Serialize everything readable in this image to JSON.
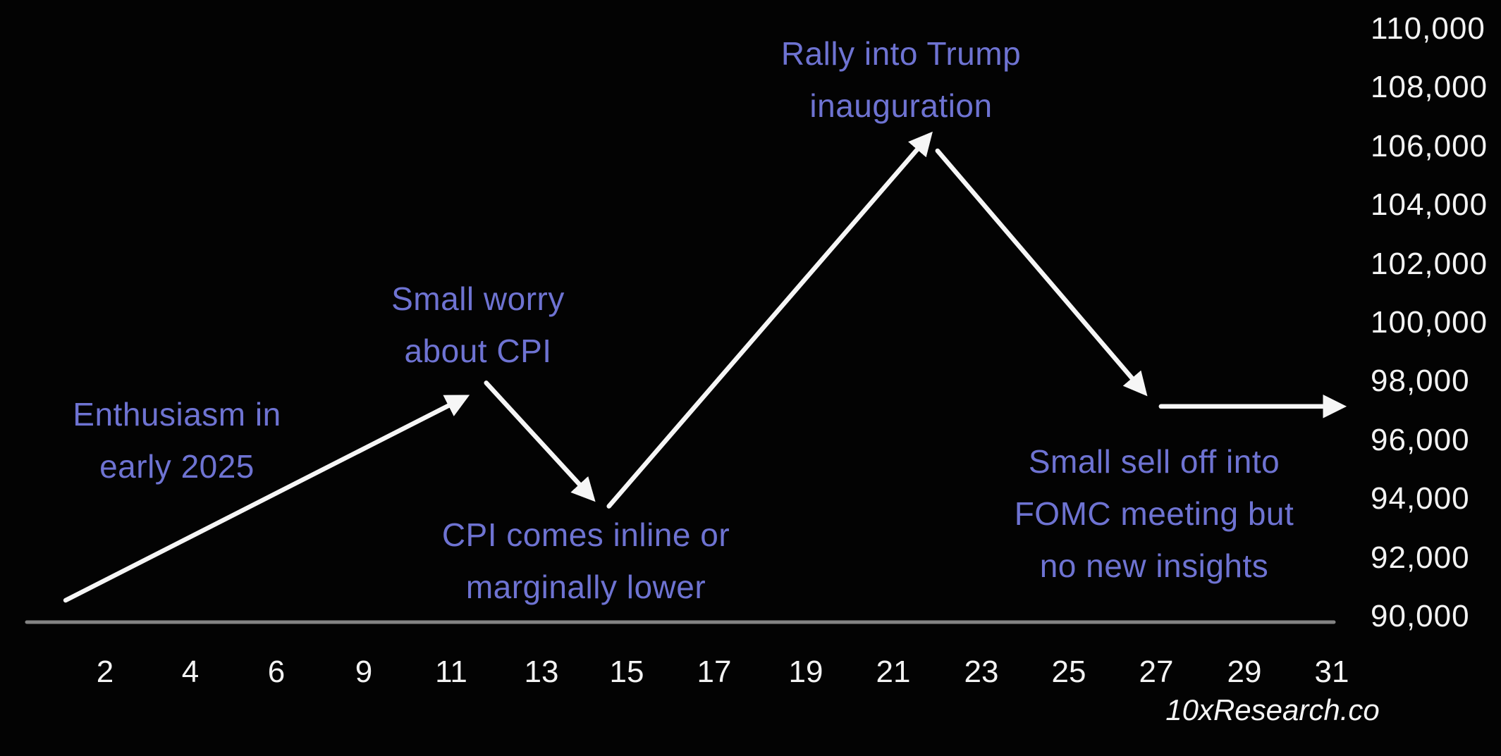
{
  "page": {
    "background_color": "#030303",
    "watermark": "10xResearch.co"
  },
  "colors": {
    "annotation_text": "#6e73d2",
    "price_line": "#f6f6f6",
    "axis_line": "#848484",
    "tick_text": "#f3f3f3"
  },
  "chart_data": {
    "type": "line",
    "title": "",
    "xlabel": "",
    "ylabel": "",
    "description": "Hand-drawn Bitcoin price scenario path for January 2025 with arrow segments",
    "x_axis": {
      "tick_labels": [
        "2",
        "4",
        "6",
        "9",
        "11",
        "13",
        "15",
        "17",
        "19",
        "21",
        "23",
        "25",
        "27",
        "29",
        "31"
      ]
    },
    "y_axis": {
      "tick_labels": [
        "110,000",
        "108,000",
        "106,000",
        "104,000",
        "102,000",
        "100,000",
        "98,000",
        "96,000",
        "94,000",
        "92,000",
        "90,000"
      ],
      "min": 90000,
      "max": 110000,
      "step": 2000
    },
    "grid": false,
    "legend": false,
    "series": [
      {
        "name": "projected-price-path",
        "color": "#f6f6f6",
        "style": "arrow-segments",
        "segments": [
          {
            "from": {
              "day": 1.1,
              "price": 90600
            },
            "to": {
              "day": 10.2,
              "price": 97500
            }
          },
          {
            "from": {
              "day": 10.7,
              "price": 98000
            },
            "to": {
              "day": 13.1,
              "price": 94100
            }
          },
          {
            "from": {
              "day": 13.5,
              "price": 93800
            },
            "to": {
              "day": 20.8,
              "price": 106400
            }
          },
          {
            "from": {
              "day": 21.0,
              "price": 105900
            },
            "to": {
              "day": 25.7,
              "price": 97700
            }
          },
          {
            "from": {
              "day": 26.1,
              "price": 97200
            },
            "to": {
              "day": 30.2,
              "price": 97200
            }
          }
        ]
      }
    ],
    "annotations": [
      {
        "id": "enthusiasm",
        "text": "Enthusiasm in early 2025",
        "lines": [
          "Enthusiasm in",
          "early 2025"
        ],
        "anchor_day": 5,
        "anchor_price": 95000
      },
      {
        "id": "cpi_worry",
        "text": "Small worry about CPI",
        "lines": [
          "Small worry",
          "about CPI"
        ],
        "anchor_day": 11,
        "anchor_price": 99500
      },
      {
        "id": "rally",
        "text": "Rally into Trump inauguration",
        "lines": [
          "Rally into Trump",
          "inauguration"
        ],
        "anchor_day": 21,
        "anchor_price": 108500
      },
      {
        "id": "cpi_inline",
        "text": "CPI comes inline or marginally lower",
        "lines": [
          "CPI comes inline or",
          "marginally lower"
        ],
        "anchor_day": 14,
        "anchor_price": 92500
      },
      {
        "id": "fomc",
        "text": "Small sell off into FOMC meeting but no new insights",
        "lines": [
          "Small sell off into",
          "FOMC meeting but",
          "no new insights"
        ],
        "anchor_day": 27,
        "anchor_price": 95000
      }
    ]
  }
}
